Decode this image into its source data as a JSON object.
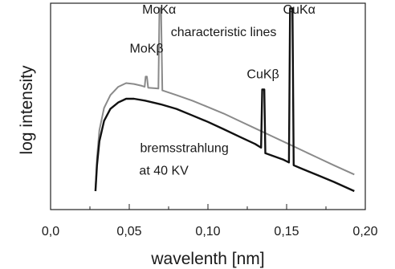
{
  "chart_data": {
    "type": "line",
    "xlabel": "wavelenth [nm]",
    "ylabel": "log intensity",
    "xlim": [
      0.0,
      0.2
    ],
    "x_scale": "linear",
    "y_scale": "log (unitless, no numeric ticks)",
    "ylim_relative": [
      0,
      1
    ],
    "xticks": [
      {
        "value": 0.0,
        "label": "0,0"
      },
      {
        "value": 0.05,
        "label": "0,05"
      },
      {
        "value": 0.1,
        "label": "0,10"
      },
      {
        "value": 0.15,
        "label": "0,15"
      },
      {
        "value": 0.2,
        "label": "0,20"
      }
    ],
    "grid": false,
    "series": [
      {
        "color": "#8a8a8a",
        "points": [
          [
            0.0285,
            0.0
          ],
          [
            0.0295,
            0.18
          ],
          [
            0.031,
            0.33
          ],
          [
            0.034,
            0.45
          ],
          [
            0.038,
            0.52
          ],
          [
            0.043,
            0.565
          ],
          [
            0.048,
            0.585
          ],
          [
            0.053,
            0.58
          ],
          [
            0.058,
            0.57
          ],
          [
            0.0598,
            0.565
          ],
          [
            0.0604,
            0.62
          ],
          [
            0.0612,
            0.62
          ],
          [
            0.062,
            0.56
          ],
          [
            0.0685,
            0.555
          ],
          [
            0.0692,
            0.99
          ],
          [
            0.0702,
            0.99
          ],
          [
            0.071,
            0.545
          ],
          [
            0.08,
            0.52
          ],
          [
            0.09,
            0.49
          ],
          [
            0.1,
            0.455
          ],
          [
            0.11,
            0.42
          ],
          [
            0.12,
            0.38
          ],
          [
            0.13,
            0.34
          ],
          [
            0.14,
            0.3
          ],
          [
            0.15,
            0.26
          ],
          [
            0.16,
            0.22
          ],
          [
            0.17,
            0.18
          ],
          [
            0.18,
            0.14
          ],
          [
            0.193,
            0.09
          ]
        ]
      },
      {
        "color": "#111111",
        "points": [
          [
            0.0285,
            0.0
          ],
          [
            0.0295,
            0.14
          ],
          [
            0.031,
            0.27
          ],
          [
            0.034,
            0.38
          ],
          [
            0.038,
            0.445
          ],
          [
            0.043,
            0.48
          ],
          [
            0.048,
            0.5
          ],
          [
            0.053,
            0.5
          ],
          [
            0.06,
            0.49
          ],
          [
            0.07,
            0.47
          ],
          [
            0.08,
            0.445
          ],
          [
            0.09,
            0.41
          ],
          [
            0.1,
            0.375
          ],
          [
            0.11,
            0.335
          ],
          [
            0.12,
            0.295
          ],
          [
            0.13,
            0.255
          ],
          [
            0.1338,
            0.235
          ],
          [
            0.1345,
            0.55
          ],
          [
            0.1358,
            0.55
          ],
          [
            0.1365,
            0.205
          ],
          [
            0.14,
            0.195
          ],
          [
            0.148,
            0.17
          ],
          [
            0.1515,
            0.155
          ],
          [
            0.1522,
            0.99
          ],
          [
            0.1537,
            0.99
          ],
          [
            0.1545,
            0.14
          ],
          [
            0.16,
            0.12
          ],
          [
            0.17,
            0.085
          ],
          [
            0.18,
            0.05
          ],
          [
            0.193,
            0.0
          ]
        ]
      }
    ],
    "annotations": [
      {
        "text": "MoKα",
        "x": 0.069,
        "y": 0.96
      },
      {
        "text": "MoKβ",
        "x": 0.061,
        "y": 0.75
      },
      {
        "text": "characteristic lines",
        "x": 0.11,
        "y": 0.84
      },
      {
        "text": "CuKβ",
        "x": 0.135,
        "y": 0.61
      },
      {
        "text": "CuKα",
        "x": 0.158,
        "y": 0.96
      },
      {
        "text": "bremsstrahlung",
        "x": 0.085,
        "y": 0.21
      },
      {
        "text": "at 40 KV",
        "x": 0.072,
        "y": 0.09
      }
    ]
  }
}
